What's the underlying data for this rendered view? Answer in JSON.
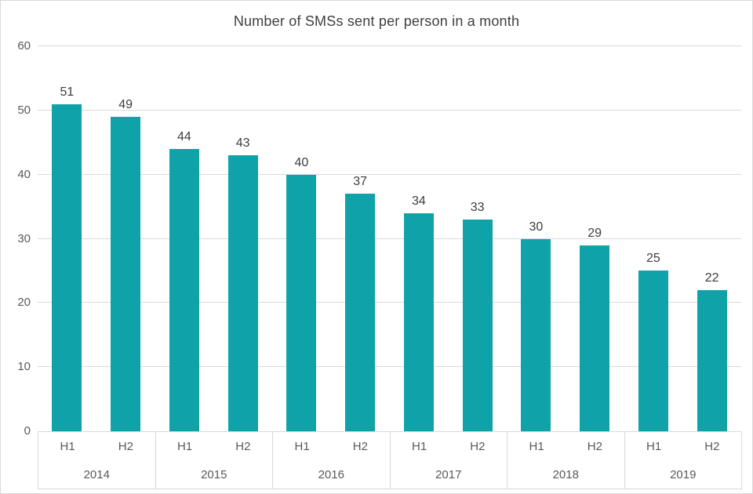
{
  "chart_data": {
    "type": "bar",
    "title": "Number of SMSs sent per person in a month",
    "xlabel": "",
    "ylabel": "",
    "ylim": [
      0,
      60
    ],
    "yticks": [
      0,
      10,
      20,
      30,
      40,
      50,
      60
    ],
    "grid": true,
    "legend": false,
    "data_labels": true,
    "sub_categories": [
      "H1",
      "H2"
    ],
    "categories": [
      "2014 H1",
      "2014 H2",
      "2015 H1",
      "2015 H2",
      "2016 H1",
      "2016 H2",
      "2017 H1",
      "2017 H2",
      "2018 H1",
      "2018 H2",
      "2019 H1",
      "2019 H2"
    ],
    "values": [
      51,
      49,
      44,
      43,
      40,
      37,
      34,
      33,
      30,
      29,
      25,
      22
    ],
    "groups": [
      {
        "label": "2014",
        "bars": [
          {
            "sub": "H1",
            "value": 51
          },
          {
            "sub": "H2",
            "value": 49
          }
        ]
      },
      {
        "label": "2015",
        "bars": [
          {
            "sub": "H1",
            "value": 44
          },
          {
            "sub": "H2",
            "value": 43
          }
        ]
      },
      {
        "label": "2016",
        "bars": [
          {
            "sub": "H1",
            "value": 40
          },
          {
            "sub": "H2",
            "value": 37
          }
        ]
      },
      {
        "label": "2017",
        "bars": [
          {
            "sub": "H1",
            "value": 34
          },
          {
            "sub": "H2",
            "value": 33
          }
        ]
      },
      {
        "label": "2018",
        "bars": [
          {
            "sub": "H1",
            "value": 30
          },
          {
            "sub": "H2",
            "value": 29
          }
        ]
      },
      {
        "label": "2019",
        "bars": [
          {
            "sub": "H1",
            "value": 25
          },
          {
            "sub": "H2",
            "value": 22
          }
        ]
      }
    ],
    "colors": {
      "bar": "#0FA3A9",
      "title_text": "#3F3F3F",
      "value_label_text": "#3C3C3C",
      "axis_text": "#595959",
      "gridline": "#D9D9D9",
      "border": "#D9D9D9",
      "background": "#FFFFFF"
    }
  }
}
